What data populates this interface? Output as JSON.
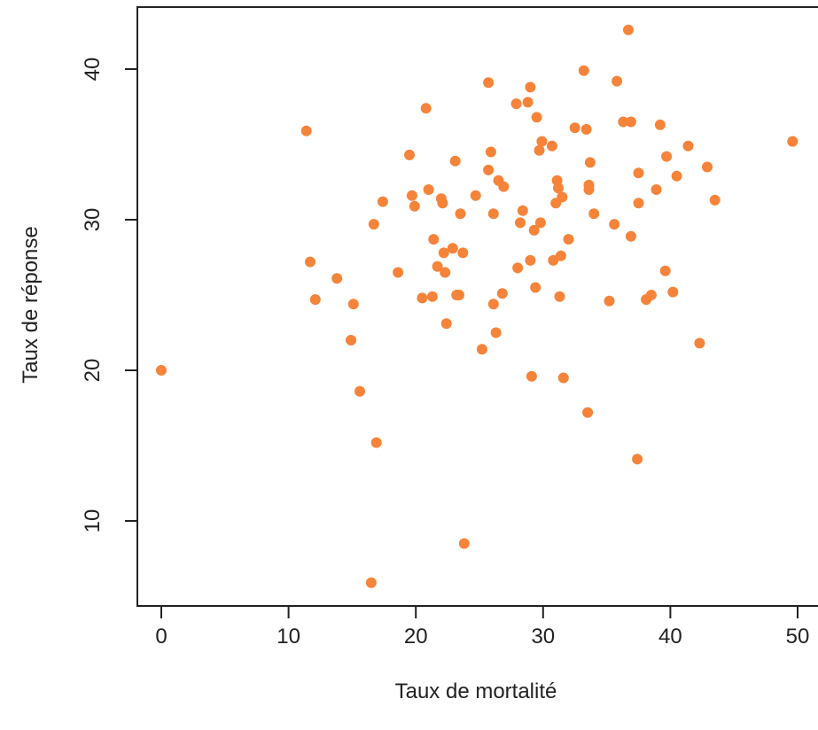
{
  "chart_data": {
    "type": "scatter",
    "title": "",
    "xlabel": "Taux de mortalité",
    "ylabel": "Taux de réponse",
    "xlim": [
      -2,
      51
    ],
    "ylim": [
      4.5,
      44.5
    ],
    "x_ticks": [
      0,
      10,
      20,
      30,
      40,
      50
    ],
    "y_ticks": [
      10,
      20,
      30,
      40
    ],
    "x_tick_labels": [
      "0",
      "10",
      "20",
      "30",
      "40",
      "50"
    ],
    "y_tick_labels": [
      "10",
      "20",
      "30",
      "40"
    ],
    "grid": false,
    "legend": "none",
    "point_color": "#f5843a",
    "points": [
      [
        0.0,
        20.0
      ],
      [
        11.4,
        35.9
      ],
      [
        11.7,
        27.2
      ],
      [
        12.1,
        24.7
      ],
      [
        13.8,
        26.1
      ],
      [
        14.9,
        22.0
      ],
      [
        15.1,
        24.4
      ],
      [
        15.6,
        18.6
      ],
      [
        16.5,
        5.9
      ],
      [
        16.7,
        29.7
      ],
      [
        16.9,
        15.2
      ],
      [
        17.4,
        31.2
      ],
      [
        18.6,
        26.5
      ],
      [
        19.5,
        34.3
      ],
      [
        19.7,
        31.6
      ],
      [
        19.9,
        30.9
      ],
      [
        20.5,
        24.8
      ],
      [
        20.8,
        37.4
      ],
      [
        21.0,
        32.0
      ],
      [
        21.3,
        24.9
      ],
      [
        21.4,
        28.7
      ],
      [
        21.7,
        26.9
      ],
      [
        22.0,
        31.4
      ],
      [
        22.1,
        31.1
      ],
      [
        22.2,
        27.8
      ],
      [
        22.3,
        26.5
      ],
      [
        22.4,
        23.1
      ],
      [
        22.9,
        28.1
      ],
      [
        23.1,
        33.9
      ],
      [
        23.2,
        25.0
      ],
      [
        23.4,
        25.0
      ],
      [
        23.5,
        30.4
      ],
      [
        23.7,
        27.8
      ],
      [
        23.8,
        8.5
      ],
      [
        24.7,
        31.6
      ],
      [
        25.2,
        21.4
      ],
      [
        25.7,
        39.1
      ],
      [
        25.7,
        33.3
      ],
      [
        25.9,
        34.5
      ],
      [
        26.1,
        24.4
      ],
      [
        26.1,
        30.4
      ],
      [
        26.3,
        22.5
      ],
      [
        26.5,
        32.6
      ],
      [
        26.8,
        25.1
      ],
      [
        26.9,
        32.2
      ],
      [
        27.9,
        37.7
      ],
      [
        28.0,
        26.8
      ],
      [
        28.2,
        29.8
      ],
      [
        28.4,
        30.6
      ],
      [
        28.8,
        37.8
      ],
      [
        29.0,
        38.8
      ],
      [
        29.0,
        27.3
      ],
      [
        29.1,
        19.6
      ],
      [
        29.3,
        29.3
      ],
      [
        29.4,
        25.5
      ],
      [
        29.5,
        36.8
      ],
      [
        29.7,
        34.6
      ],
      [
        29.8,
        29.8
      ],
      [
        29.9,
        35.2
      ],
      [
        30.7,
        34.9
      ],
      [
        30.8,
        27.3
      ],
      [
        31.0,
        31.1
      ],
      [
        31.1,
        32.6
      ],
      [
        31.2,
        32.1
      ],
      [
        31.3,
        24.9
      ],
      [
        31.4,
        27.6
      ],
      [
        31.5,
        31.5
      ],
      [
        31.6,
        19.5
      ],
      [
        32.0,
        28.7
      ],
      [
        32.5,
        36.1
      ],
      [
        33.2,
        39.9
      ],
      [
        33.4,
        36.0
      ],
      [
        33.5,
        17.2
      ],
      [
        33.6,
        32.3
      ],
      [
        33.6,
        32.0
      ],
      [
        33.7,
        33.8
      ],
      [
        34.0,
        30.4
      ],
      [
        35.2,
        24.6
      ],
      [
        35.6,
        29.7
      ],
      [
        35.8,
        39.2
      ],
      [
        36.3,
        36.5
      ],
      [
        36.7,
        42.6
      ],
      [
        36.9,
        36.5
      ],
      [
        36.9,
        28.9
      ],
      [
        37.4,
        14.1
      ],
      [
        37.5,
        33.1
      ],
      [
        37.5,
        31.1
      ],
      [
        38.1,
        24.7
      ],
      [
        38.5,
        25.0
      ],
      [
        38.9,
        32.0
      ],
      [
        39.2,
        36.3
      ],
      [
        39.6,
        26.6
      ],
      [
        39.7,
        34.2
      ],
      [
        40.2,
        25.2
      ],
      [
        40.5,
        32.9
      ],
      [
        41.4,
        34.9
      ],
      [
        42.3,
        21.8
      ],
      [
        42.9,
        33.5
      ],
      [
        43.5,
        31.3
      ],
      [
        49.6,
        35.2
      ]
    ]
  }
}
